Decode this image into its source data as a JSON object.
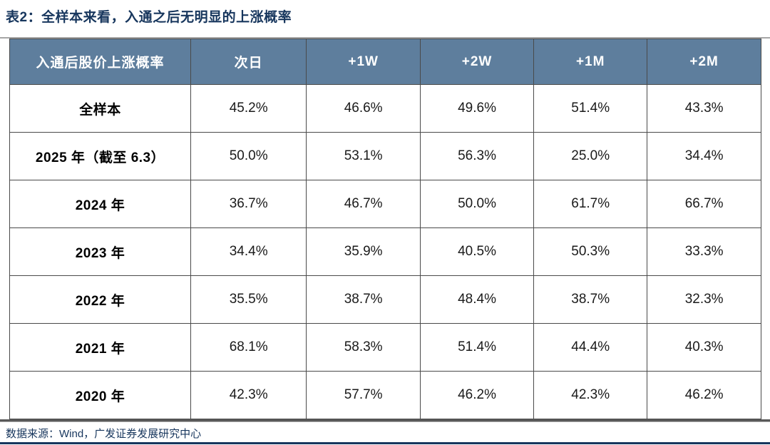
{
  "title": "表2：全样本来看，入通之后无明显的上涨概率",
  "source": "数据来源：Wind，广发证券发展研究中心",
  "colors": {
    "header_bg": "#5e7e9d",
    "header_text": "#ffffff",
    "title_text": "#17365d",
    "cell_border": "#4a4a4a",
    "accent_line": "#17365d"
  },
  "chart_data": {
    "type": "table",
    "title": "表2：全样本来看，入通之后无明显的上涨概率",
    "columns": [
      "入通后股价上涨概率",
      "次日",
      "+1W",
      "+2W",
      "+1M",
      "+2M"
    ],
    "rows": [
      {
        "label": "全样本",
        "values": [
          "45.2%",
          "46.6%",
          "49.6%",
          "51.4%",
          "43.3%"
        ]
      },
      {
        "label": "2025 年（截至 6.3）",
        "values": [
          "50.0%",
          "53.1%",
          "56.3%",
          "25.0%",
          "34.4%"
        ]
      },
      {
        "label": "2024 年",
        "values": [
          "36.7%",
          "46.7%",
          "50.0%",
          "61.7%",
          "66.7%"
        ]
      },
      {
        "label": "2023 年",
        "values": [
          "34.4%",
          "35.9%",
          "40.5%",
          "50.3%",
          "33.3%"
        ]
      },
      {
        "label": "2022 年",
        "values": [
          "35.5%",
          "38.7%",
          "48.4%",
          "38.7%",
          "32.3%"
        ]
      },
      {
        "label": "2021 年",
        "values": [
          "68.1%",
          "58.3%",
          "51.4%",
          "44.4%",
          "40.3%"
        ]
      },
      {
        "label": "2020 年",
        "values": [
          "42.3%",
          "57.7%",
          "46.2%",
          "42.3%",
          "46.2%"
        ]
      }
    ],
    "layout": {
      "header_style": "dark-slate-blue",
      "grid": true,
      "value_format": "percent"
    }
  }
}
